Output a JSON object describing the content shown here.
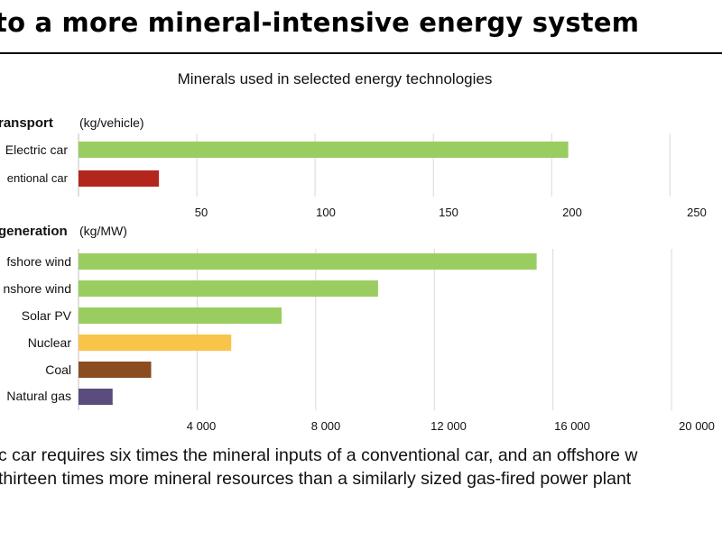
{
  "page": {
    "title": "to a more mineral-intensive energy system",
    "caption_lines": [
      "ctric car requires six times the mineral inputs of a conventional car, and an offshore w",
      "es thirteen times more mineral resources than a similarly sized gas-fired power plant"
    ]
  },
  "chart_data": [
    {
      "type": "bar",
      "orientation": "horizontal",
      "title": "Minerals used in selected energy technologies",
      "section": "ransport",
      "unit": "(kg/vehicle)",
      "categories": [
        "Electric car",
        "entional car"
      ],
      "values": [
        207,
        34
      ],
      "colors": [
        "#9acd5f",
        "#b3261e"
      ],
      "xlim": [
        0,
        272
      ],
      "xticks": [
        50,
        100,
        150,
        200,
        250
      ],
      "xtick_labels": [
        "50",
        "100",
        "150",
        "200",
        "250"
      ],
      "grid": true
    },
    {
      "type": "bar",
      "orientation": "horizontal",
      "section": "generation",
      "unit": "(kg/MW)",
      "categories": [
        "fshore wind",
        "nshore wind",
        "Solar PV",
        "Nuclear",
        "Coal",
        "Natural gas"
      ],
      "values": [
        15450,
        10100,
        6850,
        5150,
        2450,
        1150
      ],
      "colors": [
        "#9acd5f",
        "#9acd5f",
        "#9acd5f",
        "#f9c44a",
        "#8b4c1f",
        "#5a4d7e"
      ],
      "xlim": [
        0,
        21700
      ],
      "xticks": [
        4000,
        8000,
        12000,
        16000,
        20000
      ],
      "xtick_labels": [
        "4 000",
        "8 000",
        "12 000",
        "16 000",
        "20 000"
      ],
      "grid": true
    }
  ]
}
